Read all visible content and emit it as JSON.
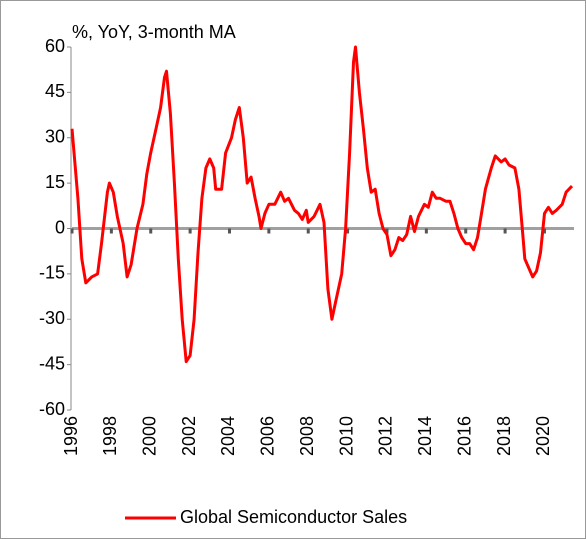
{
  "chart_data": {
    "type": "line",
    "y_label": "%, YoY, 3-month MA",
    "xlim": [
      1996,
      2021.5
    ],
    "xticks": [
      1996,
      1998,
      2000,
      2002,
      2004,
      2006,
      2008,
      2010,
      2012,
      2014,
      2016,
      2018,
      2020
    ],
    "ylim": [
      -60,
      60
    ],
    "yticks": [
      -60,
      -45,
      -30,
      -15,
      0,
      15,
      30,
      45,
      60
    ],
    "legend": "bottom",
    "x": [
      1996.0,
      1996.3,
      1996.5,
      1996.7,
      1997.0,
      1997.3,
      1997.5,
      1997.8,
      1997.9,
      1998.1,
      1998.3,
      1998.6,
      1998.8,
      1999.0,
      1999.3,
      1999.6,
      1999.8,
      2000.0,
      2000.3,
      2000.5,
      2000.7,
      2000.8,
      2001.0,
      2001.2,
      2001.4,
      2001.6,
      2001.8,
      2002.0,
      2002.2,
      2002.4,
      2002.6,
      2002.8,
      2003.0,
      2003.2,
      2003.3,
      2003.6,
      2003.8,
      2004.1,
      2004.3,
      2004.5,
      2004.7,
      2004.9,
      2005.1,
      2005.3,
      2005.5,
      2005.6,
      2005.8,
      2006.0,
      2006.3,
      2006.6,
      2006.8,
      2007.0,
      2007.3,
      2007.5,
      2007.7,
      2007.9,
      2008.0,
      2008.3,
      2008.6,
      2008.8,
      2009.0,
      2009.2,
      2009.4,
      2009.7,
      2009.9,
      2010.1,
      2010.3,
      2010.4,
      2010.6,
      2010.8,
      2011.0,
      2011.2,
      2011.4,
      2011.6,
      2011.8,
      2012.0,
      2012.2,
      2012.4,
      2012.6,
      2012.8,
      2013.0,
      2013.2,
      2013.4,
      2013.6,
      2013.9,
      2014.1,
      2014.3,
      2014.5,
      2014.7,
      2015.0,
      2015.2,
      2015.4,
      2015.6,
      2015.8,
      2016.0,
      2016.2,
      2016.4,
      2016.6,
      2016.8,
      2017.0,
      2017.3,
      2017.5,
      2017.8,
      2018.0,
      2018.2,
      2018.5,
      2018.7,
      2018.9,
      2019.0,
      2019.2,
      2019.4,
      2019.6,
      2019.8,
      2020.0,
      2020.2,
      2020.4,
      2020.6,
      2020.9,
      2021.1,
      2021.4
    ],
    "series": [
      {
        "name": "Global Semiconductor Sales",
        "color": "#ff0000",
        "values": [
          33,
          10,
          -10,
          -18,
          -16,
          -15,
          -5,
          12,
          15,
          12,
          4,
          -5,
          -16,
          -12,
          0,
          8,
          18,
          25,
          34,
          40,
          50,
          52,
          38,
          15,
          -10,
          -30,
          -44,
          -42,
          -30,
          -8,
          10,
          20,
          23,
          20,
          13,
          13,
          25,
          30,
          36,
          40,
          30,
          15,
          17,
          10,
          4,
          0,
          5,
          8,
          8,
          12,
          9,
          10,
          6,
          5,
          3,
          6,
          2,
          4,
          8,
          2,
          -20,
          -30,
          -24,
          -15,
          0,
          25,
          55,
          60,
          45,
          33,
          20,
          12,
          13,
          5,
          0,
          -2,
          -9,
          -7,
          -3,
          -4,
          -2,
          4,
          -1,
          4,
          8,
          7,
          12,
          10,
          10,
          9,
          9,
          5,
          0,
          -3,
          -5,
          -5,
          -7,
          -3,
          5,
          13,
          20,
          24,
          22,
          23,
          21,
          20,
          13,
          -2,
          -10,
          -13,
          -16,
          -14,
          -8,
          5,
          7,
          5,
          6,
          8,
          12,
          14
        ]
      }
    ]
  }
}
